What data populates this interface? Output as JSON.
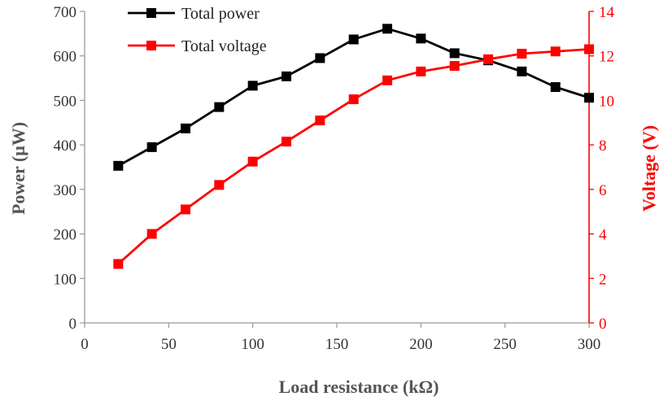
{
  "chart_data": {
    "type": "line",
    "xlabel": "Load resistance (kΩ)",
    "ylabel_left": "Power (μW)",
    "ylabel_right": "Voltage (V)",
    "xlim": [
      0,
      300
    ],
    "ylim_left": [
      0,
      700
    ],
    "ylim_right": [
      0,
      14
    ],
    "x_ticks": [
      0,
      50,
      100,
      150,
      200,
      250,
      300
    ],
    "y_left_ticks": [
      0,
      100,
      200,
      300,
      400,
      500,
      600,
      700
    ],
    "y_right_ticks": [
      0,
      2,
      4,
      6,
      8,
      10,
      12,
      14
    ],
    "grid": false,
    "legend_position": "top-left",
    "x": [
      20,
      40,
      60,
      80,
      100,
      120,
      140,
      160,
      180,
      200,
      220,
      240,
      260,
      280,
      300
    ],
    "series": [
      {
        "name": "Total power",
        "axis": "left",
        "color": "#000000",
        "marker": "square",
        "values": [
          353,
          395,
          437,
          485,
          533,
          554,
          595,
          637,
          661,
          639,
          606,
          590,
          565,
          530,
          506
        ]
      },
      {
        "name": "Total voltage",
        "axis": "right",
        "color": "#ff0000",
        "marker": "square",
        "values": [
          2.65,
          4.0,
          5.1,
          6.2,
          7.25,
          8.15,
          9.1,
          10.05,
          10.9,
          11.3,
          11.55,
          11.85,
          12.1,
          12.2,
          12.3
        ]
      }
    ]
  },
  "colors": {
    "left_axis": "#000000",
    "right_axis": "#ff0000",
    "axis_title_left": "#555555",
    "axis_title_x": "#555555",
    "axis_title_right": "#ff0000"
  }
}
